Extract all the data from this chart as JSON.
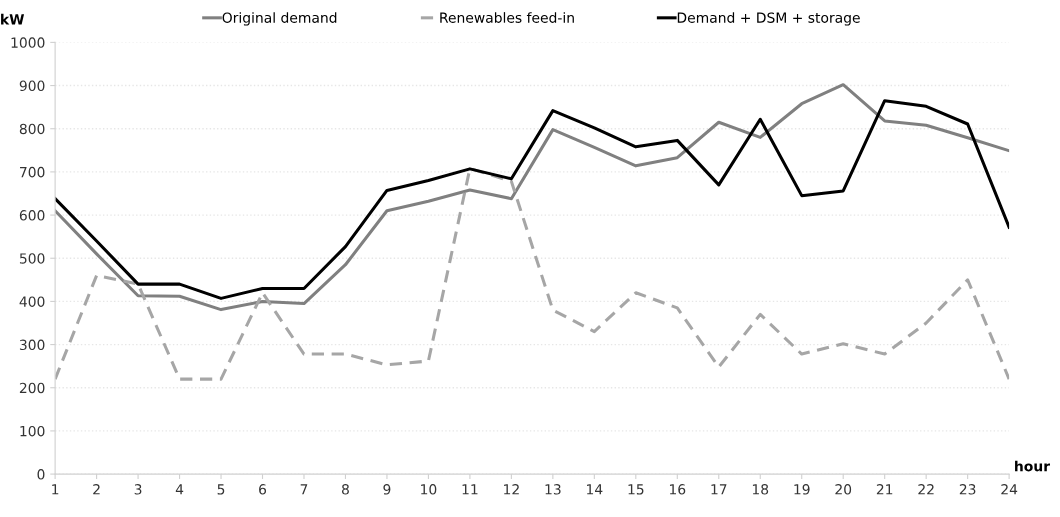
{
  "chart_data": {
    "type": "line",
    "xlabel": "hour",
    "ylabel": "kW",
    "categories": [
      "1",
      "2",
      "3",
      "4",
      "5",
      "6",
      "7",
      "8",
      "9",
      "10",
      "11",
      "12",
      "13",
      "14",
      "15",
      "16",
      "17",
      "18",
      "19",
      "20",
      "21",
      "22",
      "23",
      "24"
    ],
    "series": [
      {
        "name": "Original demand",
        "color": "#808080",
        "line_style": "solid",
        "values": [
          610,
          510,
          413,
          412,
          381,
          400,
          395,
          485,
          610,
          632,
          658,
          638,
          798,
          757,
          714,
          733,
          815,
          780,
          858,
          902,
          818,
          808,
          779,
          749
        ]
      },
      {
        "name": "Renewables feed-in",
        "color": "#a6a6a6",
        "line_style": "dashed",
        "values": [
          220,
          460,
          440,
          220,
          220,
          420,
          278,
          278,
          253,
          262,
          708,
          678,
          380,
          330,
          420,
          385,
          248,
          370,
          278,
          302,
          278,
          350,
          450,
          220
        ]
      },
      {
        "name": "Demand + DSM + storage",
        "color": "#000000",
        "line_style": "solid",
        "values": [
          638,
          540,
          440,
          440,
          407,
          430,
          430,
          527,
          657,
          680,
          707,
          684,
          842,
          802,
          758,
          773,
          670,
          822,
          645,
          656,
          865,
          852,
          811,
          572
        ]
      }
    ],
    "ylim": [
      0,
      1000
    ],
    "yticks": [
      0,
      100,
      200,
      300,
      400,
      500,
      600,
      700,
      800,
      900,
      1000
    ],
    "grid": "y",
    "legend": "top",
    "marker": "none"
  }
}
